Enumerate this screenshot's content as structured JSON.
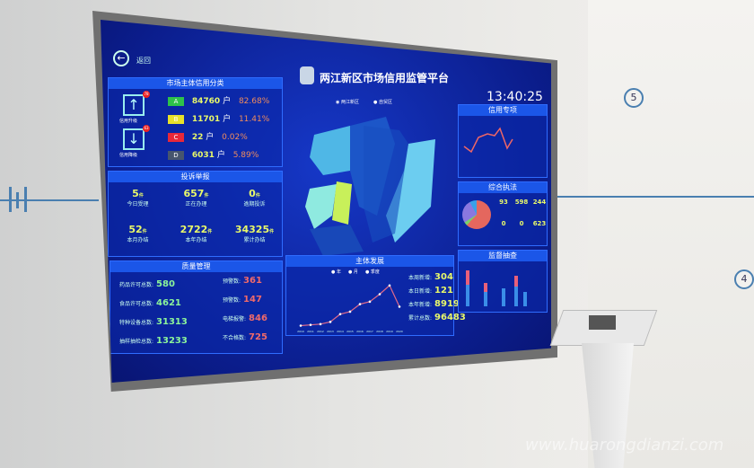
{
  "header": {
    "back_label": "返回",
    "title": "两江新区市场信用监管平台",
    "time": "13:40:25",
    "map_options": [
      "两江新区",
      "自贸区"
    ]
  },
  "credit": {
    "title": "市场主体信用分类",
    "upgrade_label": "信用升级",
    "upgrade_count": "78",
    "downgrade_label": "信用降级",
    "downgrade_count": "63",
    "grades": [
      {
        "grade": "A",
        "count": "84760",
        "unit": "户",
        "pct": "82.68%",
        "color": "#2ec24a"
      },
      {
        "grade": "B",
        "count": "11701",
        "unit": "户",
        "pct": "11.41%",
        "color": "#e8e02a"
      },
      {
        "grade": "C",
        "count": "22",
        "unit": "户",
        "pct": "0.02%",
        "color": "#e8283a"
      },
      {
        "grade": "D",
        "count": "6031",
        "unit": "户",
        "pct": "5.89%",
        "color": "#46556e"
      }
    ]
  },
  "complaints": {
    "title": "投诉举报",
    "unit": "件",
    "cells": [
      {
        "value": "5",
        "label": "今日受理"
      },
      {
        "value": "657",
        "label": "正在办理"
      },
      {
        "value": "0",
        "label": "逾期投诉"
      },
      {
        "value": "52",
        "label": "本月办结"
      },
      {
        "value": "2722",
        "label": "本年办结"
      },
      {
        "value": "34325",
        "label": "累计办结"
      }
    ]
  },
  "quality": {
    "title": "质量管理",
    "left": [
      {
        "label": "药品许可总数:",
        "value": "580"
      },
      {
        "label": "食品许可总数:",
        "value": "4621"
      },
      {
        "label": "特种设备总数:",
        "value": "31313"
      },
      {
        "label": "抽样抽检总数:",
        "value": "13233"
      }
    ],
    "right": [
      {
        "label": "预警数:",
        "value": "361"
      },
      {
        "label": "预警数:",
        "value": "147"
      },
      {
        "label": "电梯报警:",
        "value": "846"
      },
      {
        "label": "不合格数:",
        "value": "725"
      }
    ]
  },
  "development": {
    "title": "主体发展",
    "tabs": [
      "年",
      "月",
      "季度"
    ],
    "years": [
      "2010",
      "2011",
      "2012",
      "2013",
      "2014",
      "2015",
      "2016",
      "2017",
      "2018",
      "2019",
      "2020"
    ],
    "values": [
      900,
      1200,
      1500,
      2400,
      5500,
      6500,
      9500,
      10500,
      13500,
      17000,
      8500
    ],
    "stats": [
      {
        "label": "本周新增:",
        "value": "304"
      },
      {
        "label": "本日新增:",
        "value": "121"
      },
      {
        "label": "本年新增:",
        "value": "8919"
      },
      {
        "label": "累计总数:",
        "value": "96483"
      }
    ]
  },
  "right_panels": {
    "top_title": "信用专项",
    "mid_title": "综合执法",
    "mid_cells": [
      "93",
      "598",
      "244",
      "0",
      "0",
      "623"
    ],
    "bottom_title": "监督抽查"
  },
  "watermark": "www.huarongdianzi.com",
  "wall": {
    "step5": "5",
    "step4": "4"
  }
}
